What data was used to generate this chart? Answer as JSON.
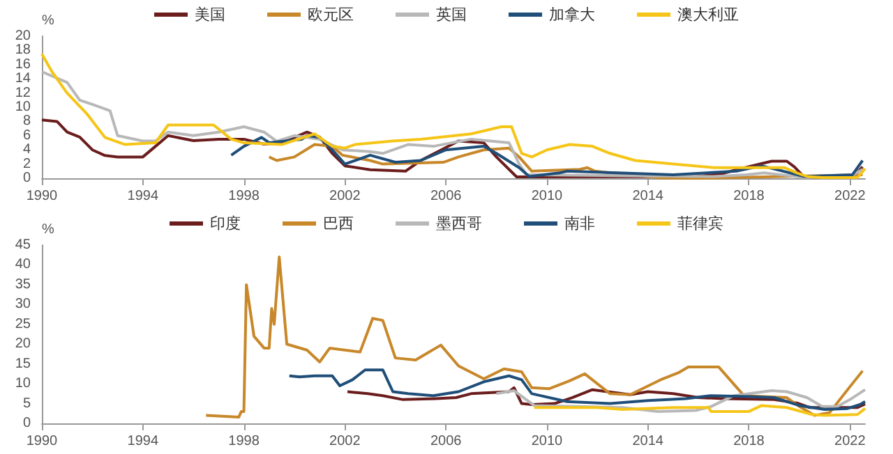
{
  "chart_data": [
    {
      "type": "line",
      "ylabel": "%",
      "legend": "top",
      "marker": "none",
      "grid": false,
      "xlim": [
        1990,
        2022.6
      ],
      "xticks": [
        1990,
        1994,
        1998,
        2002,
        2006,
        2010,
        2014,
        2018,
        2022
      ],
      "ylim": [
        0,
        20
      ],
      "yticks": [
        0,
        2,
        4,
        6,
        8,
        10,
        12,
        14,
        16,
        18,
        20
      ],
      "series": [
        {
          "name": "美国",
          "color": "#6b1d1d",
          "x": [
            1990,
            1990.6,
            1991,
            1991.5,
            1992,
            1992.5,
            1993,
            1994,
            1994.5,
            1995,
            1996,
            1997,
            1998,
            1998.8,
            1999.5,
            2000.5,
            2001,
            2001.5,
            2002,
            2003,
            2004.4,
            2005,
            2006.5,
            2007.5,
            2008,
            2008.8,
            2015.9,
            2016.9,
            2017.5,
            2018.9,
            2019.5,
            2019.8,
            2020.2,
            2022.1,
            2022.5
          ],
          "values": [
            8.2,
            8,
            6.5,
            5.8,
            4,
            3.2,
            3,
            3,
            4.5,
            6,
            5.3,
            5.5,
            5.5,
            4.8,
            5,
            6.5,
            5.8,
            3.5,
            1.75,
            1.2,
            1,
            2.5,
            5.25,
            5,
            3,
            0.2,
            0.25,
            0.6,
            1.2,
            2.4,
            2.4,
            1.6,
            0.1,
            0.1,
            1.6
          ]
        },
        {
          "name": "欧元区",
          "color": "#c8882a",
          "x": [
            1999,
            1999.3,
            2000,
            2000.8,
            2001.5,
            2001.9,
            2003,
            2003.5,
            2005.9,
            2006.5,
            2007.5,
            2008.5,
            2008.9,
            2009.4,
            2011.3,
            2011.6,
            2011.9,
            2012.5,
            2013.5,
            2014.5,
            2016,
            2022.5
          ],
          "values": [
            3,
            2.5,
            3,
            4.75,
            4.5,
            3.25,
            2.5,
            2,
            2.25,
            3,
            4,
            4.25,
            3,
            1,
            1.25,
            1.5,
            1,
            0.75,
            0.5,
            0.05,
            0,
            0.5
          ]
        },
        {
          "name": "英国",
          "color": "#b8b8b8",
          "x": [
            1990,
            1991,
            1991.5,
            1992,
            1992.7,
            1993,
            1994,
            1994.5,
            1995,
            1996,
            1997,
            1998,
            1998.8,
            1999.3,
            2000,
            2001,
            2001.9,
            2003,
            2003.5,
            2004.5,
            2005.5,
            2007,
            2008.5,
            2008.9,
            2009.2,
            2016.6,
            2017.9,
            2018.6,
            2020.2,
            2022,
            2022.5
          ],
          "values": [
            15,
            13.5,
            11,
            10.4,
            9.5,
            6,
            5.25,
            5.25,
            6.5,
            6,
            6.5,
            7.25,
            6.5,
            5.2,
            6,
            5.5,
            4,
            3.75,
            3.5,
            4.75,
            4.5,
            5.5,
            5,
            2,
            0.5,
            0.25,
            0.5,
            0.75,
            0.1,
            0.25,
            1.25
          ]
        },
        {
          "name": "加拿大",
          "color": "#1f4e79",
          "x": [
            1997.5,
            1998,
            1998.7,
            1999,
            2000.3,
            2000.5,
            2001,
            2001.5,
            2002,
            2003,
            2004,
            2005,
            2006,
            2007.5,
            2008,
            2008.9,
            2009.3,
            2010.5,
            2010.8,
            2015,
            2017.5,
            2018.5,
            2020.2,
            2022.1,
            2022.5
          ],
          "values": [
            3.25,
            4.5,
            5.75,
            5,
            5.5,
            6,
            5.75,
            4,
            2,
            3.25,
            2.25,
            2.5,
            4,
            4.5,
            3.5,
            1.5,
            0.25,
            0.75,
            1,
            0.5,
            1,
            1.75,
            0.25,
            0.5,
            2.5
          ]
        },
        {
          "name": "澳大利亚",
          "color": "#f5c518",
          "x": [
            1990,
            1990.4,
            1991,
            1991.8,
            1992.5,
            1993.3,
            1994.5,
            1995,
            1996.8,
            1997.5,
            1998,
            1999.5,
            2000.8,
            2001.5,
            2002,
            2002.4,
            2003.9,
            2005,
            2007,
            2008.2,
            2008.6,
            2009,
            2009.4,
            2010,
            2010.9,
            2011.8,
            2012.5,
            2013.5,
            2015,
            2016.6,
            2019.4,
            2019.9,
            2020.3,
            2020.9,
            2022.3,
            2022.6
          ],
          "values": [
            17.5,
            15,
            12,
            9,
            5.75,
            4.75,
            5,
            7.5,
            7.5,
            5.5,
            5,
            4.75,
            6.25,
            4.5,
            4.25,
            4.75,
            5.25,
            5.5,
            6.25,
            7.25,
            7.25,
            3.5,
            3,
            4,
            4.75,
            4.5,
            3.5,
            2.5,
            2,
            1.5,
            1.5,
            0.75,
            0.25,
            0.1,
            0.1,
            1.35
          ]
        }
      ]
    },
    {
      "type": "line",
      "ylabel": "%",
      "legend": "top",
      "marker": "none",
      "grid": false,
      "xlim": [
        1990,
        2022.6
      ],
      "xticks": [
        1990,
        1994,
        1998,
        2002,
        2006,
        2010,
        2014,
        2018,
        2022
      ],
      "ylim": [
        0,
        45
      ],
      "yticks": [
        0,
        5,
        10,
        15,
        20,
        25,
        30,
        35,
        40,
        45
      ],
      "series": [
        {
          "name": "印度",
          "color": "#6b1d1d",
          "x": [
            2002.1,
            2002.9,
            2003.5,
            2004.3,
            2005.6,
            2006.4,
            2007,
            2008.5,
            2008.7,
            2009,
            2009.4,
            2010.3,
            2011,
            2011.8,
            2012.4,
            2013.3,
            2014,
            2015,
            2016,
            2017,
            2019,
            2019.9,
            2020.4,
            2022.3,
            2022.6
          ],
          "values": [
            8,
            7.5,
            7,
            6,
            6.25,
            6.5,
            7.5,
            8,
            9,
            5,
            4.75,
            5,
            6.5,
            8.5,
            8,
            7.25,
            8,
            7.5,
            6.5,
            6.25,
            6,
            5.15,
            4,
            4,
            4.9
          ]
        },
        {
          "name": "巴西",
          "color": "#c8882a",
          "x": [
            1996.5,
            1997.8,
            1997.9,
            1998,
            1998.1,
            1998.4,
            1998.8,
            1999,
            1999.1,
            1999.2,
            1999.4,
            1999.7,
            2000.5,
            2001,
            2001.4,
            2002.6,
            2003.1,
            2003.5,
            2004,
            2004.8,
            2005.8,
            2006.5,
            2007.5,
            2008.3,
            2009,
            2009.4,
            2010.1,
            2010.9,
            2011.5,
            2012.5,
            2013.3,
            2014.5,
            2015.2,
            2015.6,
            2016.8,
            2017.8,
            2019.5,
            2020,
            2020.6,
            2021.2,
            2022,
            2022.5
          ],
          "values": [
            2,
            1.6,
            3,
            3,
            35,
            22,
            19,
            19,
            29,
            25,
            42,
            20,
            18.5,
            15.5,
            19,
            18,
            26.5,
            26,
            16.5,
            16,
            19.75,
            14.5,
            11.25,
            13.75,
            13,
            9,
            8.75,
            10.75,
            12.5,
            7.5,
            7.25,
            11,
            12.75,
            14.25,
            14.25,
            7,
            6.5,
            4.25,
            2,
            2.75,
            9.25,
            13.25
          ]
        },
        {
          "name": "墨西哥",
          "color": "#b8b8b8",
          "x": [
            2008,
            2008.7,
            2009.5,
            2013,
            2014.4,
            2015.9,
            2016.5,
            2017.4,
            2018.9,
            2019.5,
            2020.3,
            2020.9,
            2021.5,
            2022,
            2022.6
          ],
          "values": [
            7.5,
            8.25,
            4.5,
            4,
            3,
            3.25,
            4.25,
            7,
            8.25,
            8,
            6.5,
            4.25,
            4.25,
            6,
            8.5
          ]
        },
        {
          "name": "南非",
          "color": "#1f4e79",
          "x": [
            1999.8,
            2000.2,
            2000.8,
            2001.5,
            2001.8,
            2002.3,
            2002.8,
            2003.5,
            2003.9,
            2004.5,
            2005.5,
            2006.5,
            2007.5,
            2008.5,
            2009,
            2009.4,
            2010.8,
            2012.5,
            2014,
            2015.5,
            2016.5,
            2018,
            2019,
            2020,
            2021,
            2021.9,
            2022.4,
            2022.6
          ],
          "values": [
            12,
            11.75,
            12,
            12,
            9.5,
            11,
            13.5,
            13.5,
            8,
            7.5,
            7,
            8,
            10.5,
            12,
            11,
            7.5,
            5.5,
            5,
            5.75,
            6.25,
            7,
            6.75,
            6.5,
            4.5,
            3.5,
            3.75,
            4.75,
            5.5
          ]
        },
        {
          "name": "菲律宾",
          "color": "#f5c518",
          "x": [
            2009.5,
            2012,
            2013,
            2015,
            2016.4,
            2016.5,
            2018,
            2018.5,
            2019.5,
            2020.5,
            2021,
            2022.3,
            2022.6
          ],
          "values": [
            4,
            4,
            3.5,
            4,
            4,
            3,
            3,
            4.5,
            4,
            2.25,
            2,
            2.25,
            3.75
          ]
        }
      ]
    }
  ]
}
